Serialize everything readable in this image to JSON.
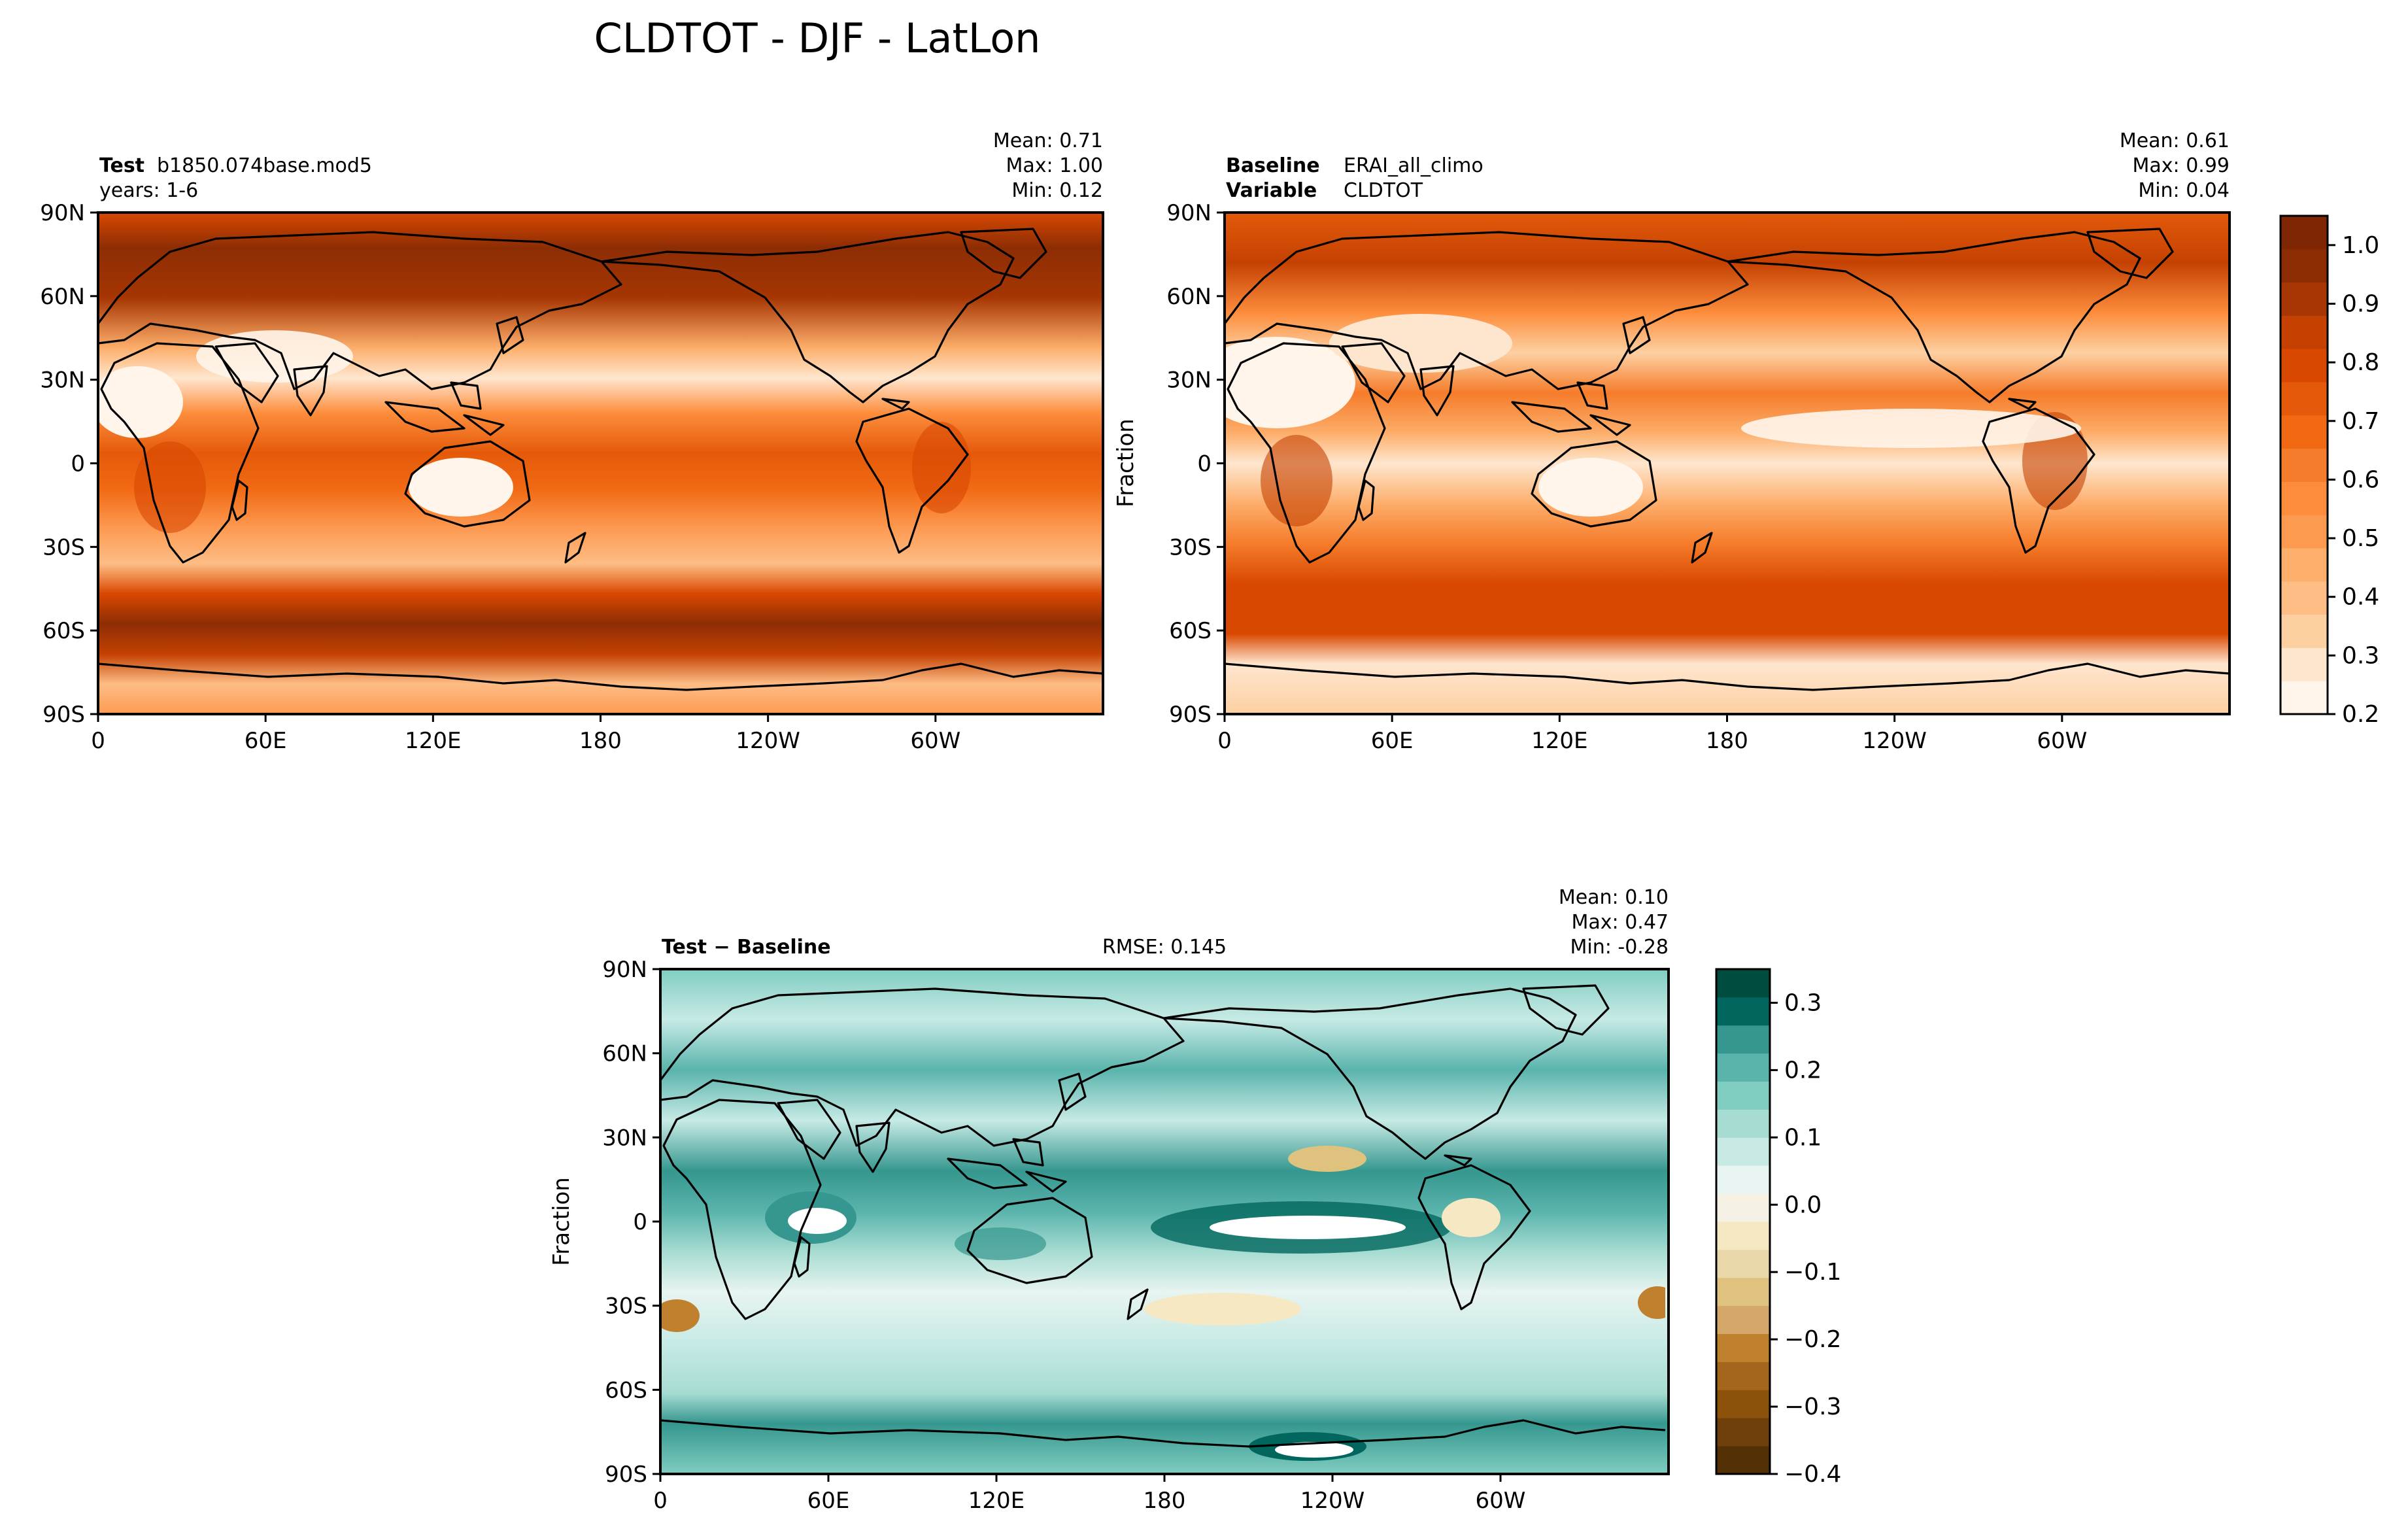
{
  "figure": {
    "title": "CLDTOT - DJF - LatLon"
  },
  "colors": {
    "orange_ramp": [
      "#fff5eb",
      "#fee6ce",
      "#fdd0a2",
      "#fdbd85",
      "#fdae6b",
      "#fd9a52",
      "#fd8d3c",
      "#f57c2a",
      "#f16913",
      "#e45a0a",
      "#d94801",
      "#c44102",
      "#a63603",
      "#8d2d04",
      "#7f2704"
    ],
    "diff_ramp": [
      "#543005",
      "#6f400a",
      "#8c510a",
      "#a4661c",
      "#bf812d",
      "#d3a868",
      "#dfc27d",
      "#ead7a9",
      "#f6e8c3",
      "#f5f1e4",
      "#e8f4f1",
      "#c7eae5",
      "#a7dcd2",
      "#80cdc1",
      "#5ab4ac",
      "#35978f",
      "#01665e",
      "#004d40"
    ]
  },
  "chart_data": [
    {
      "type": "heatmap",
      "panel": "test",
      "label_bold": "Test",
      "label_value": "b1850.074base.mod5",
      "sub_label": "years: 1-6",
      "stats": {
        "mean": "Mean:  0.71",
        "max": "Max:  1.00",
        "min": "Min:  0.12"
      },
      "xticks": [
        "0",
        "60E",
        "120E",
        "180",
        "120W",
        "60W"
      ],
      "yticks": [
        "90N",
        "60N",
        "30N",
        "0",
        "30S",
        "60S",
        "90S"
      ],
      "mean_value": 0.71,
      "max_value": 1.0,
      "min_value": 0.12
    },
    {
      "type": "heatmap",
      "panel": "baseline",
      "label_bold": "Baseline",
      "label_value": "ERAI_all_climo",
      "label2_bold": "Variable",
      "label2_value": "CLDTOT",
      "ylabel": "Fraction",
      "stats": {
        "mean": "Mean:  0.61",
        "max": "Max:  0.99",
        "min": "Min:  0.04"
      },
      "xticks": [
        "0",
        "60E",
        "120E",
        "180",
        "120W",
        "60W"
      ],
      "yticks": [
        "90N",
        "60N",
        "30N",
        "0",
        "30S",
        "60S",
        "90S"
      ],
      "colorbar": {
        "range": [
          0.2,
          1.05
        ],
        "ticks": [
          "1.0",
          "0.9",
          "0.8",
          "0.7",
          "0.6",
          "0.5",
          "0.4",
          "0.3",
          "0.2"
        ],
        "tick_values": [
          1.0,
          0.9,
          0.8,
          0.7,
          0.6,
          0.5,
          0.4,
          0.3,
          0.2
        ]
      },
      "mean_value": 0.61,
      "max_value": 0.99,
      "min_value": 0.04
    },
    {
      "type": "heatmap",
      "panel": "difference",
      "label_bold": "Test − Baseline",
      "rmse": "RMSE: 0.145",
      "ylabel": "Fraction",
      "stats": {
        "mean": "Mean:  0.10",
        "max": "Max:  0.47",
        "min": "Min: -0.28"
      },
      "xticks": [
        "0",
        "60E",
        "120E",
        "180",
        "120W",
        "60W"
      ],
      "yticks": [
        "90N",
        "60N",
        "30N",
        "0",
        "30S",
        "60S",
        "90S"
      ],
      "colorbar": {
        "range": [
          -0.4,
          0.35
        ],
        "ticks": [
          "0.3",
          "0.2",
          "0.1",
          "0.0",
          "−0.1",
          "−0.2",
          "−0.3",
          "−0.4"
        ],
        "tick_values": [
          0.3,
          0.2,
          0.1,
          0.0,
          -0.1,
          -0.2,
          -0.3,
          -0.4
        ]
      },
      "mean_value": 0.1,
      "max_value": 0.47,
      "min_value": -0.28
    }
  ]
}
